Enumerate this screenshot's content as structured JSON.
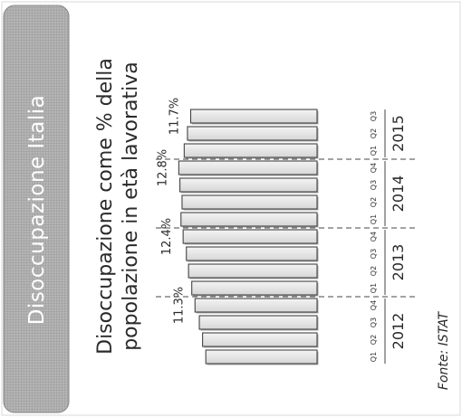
{
  "sidebar": {
    "label": "Disoccupazione Italia"
  },
  "title": {
    "line1": "Disoccupazione come % della",
    "line2": "popolazione in età lavorativa"
  },
  "source": "Fonte: ISTAT",
  "colors": {
    "sidebar_bg": "#a9a9a9",
    "bar_fill": "#e8e8e8",
    "bar_stroke": "#444444",
    "bar_shadow": "#666666",
    "text": "#2a2a2a",
    "divider": "#444444"
  },
  "chart_data": {
    "type": "bar",
    "orientation": "horizontal-rotated",
    "title": "Disoccupazione come % della popolazione in età lavorativa",
    "categories": [
      "2012 Q1",
      "2012 Q2",
      "2012 Q3",
      "2012 Q4",
      "2013 Q1",
      "2013 Q2",
      "2013 Q3",
      "2013 Q4",
      "2014 Q1",
      "2014 Q2",
      "2014 Q3",
      "2014 Q4",
      "2015 Q1",
      "2015 Q2",
      "2015 Q3"
    ],
    "values": [
      10.3,
      10.6,
      10.9,
      11.3,
      11.6,
      11.9,
      12.1,
      12.4,
      12.6,
      12.5,
      12.7,
      12.8,
      12.3,
      12.0,
      11.7
    ],
    "years": [
      {
        "label": "2012",
        "quarters": [
          "Q1",
          "Q2",
          "Q3",
          "Q4"
        ]
      },
      {
        "label": "2013",
        "quarters": [
          "Q1",
          "Q2",
          "Q3",
          "Q4"
        ]
      },
      {
        "label": "2014",
        "quarters": [
          "Q1",
          "Q2",
          "Q3",
          "Q4"
        ]
      },
      {
        "label": "2015",
        "quarters": [
          "Q1",
          "Q2",
          "Q3"
        ]
      }
    ],
    "annotations": [
      {
        "index": 3,
        "text": "11.3%"
      },
      {
        "index": 7,
        "text": "12.4%"
      },
      {
        "index": 11,
        "text": "12.8%"
      },
      {
        "index": 14,
        "text": "11.7%"
      }
    ],
    "year_dividers_after": [
      3,
      7,
      11
    ],
    "axis_max": 13.0
  }
}
